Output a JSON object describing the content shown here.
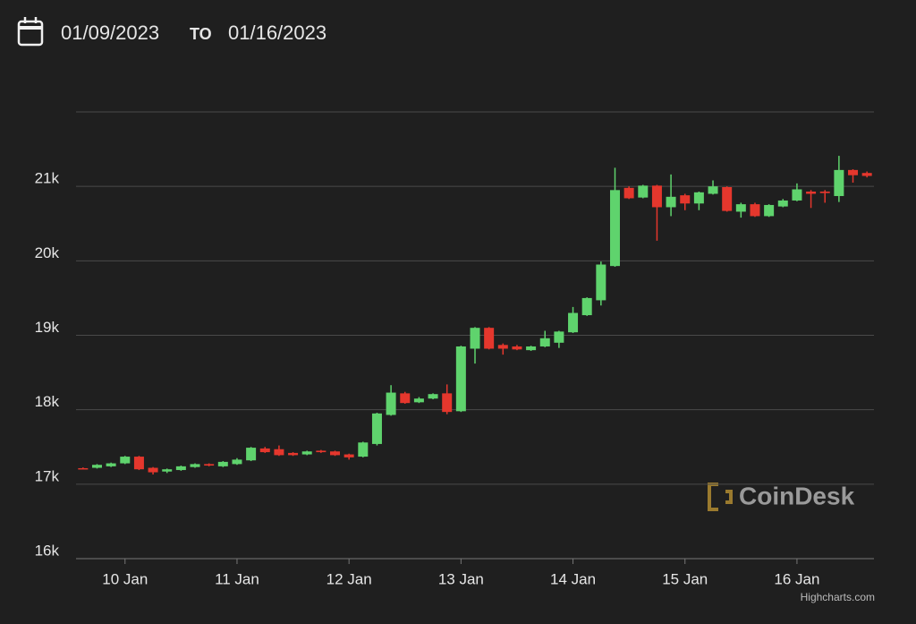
{
  "header": {
    "date_from": "01/09/2023",
    "separator": "TO",
    "date_to": "01/16/2023"
  },
  "chart_data": {
    "type": "candlestick",
    "watermark": "CoinDesk",
    "credits": "Highcharts.com",
    "x": [
      9.625,
      9.75,
      9.875,
      10.0,
      10.125,
      10.25,
      10.375,
      10.5,
      10.625,
      10.75,
      10.875,
      11.0,
      11.125,
      11.25,
      11.375,
      11.5,
      11.625,
      11.75,
      11.875,
      12.0,
      12.125,
      12.25,
      12.375,
      12.5,
      12.625,
      12.75,
      12.875,
      13.0,
      13.125,
      13.25,
      13.375,
      13.5,
      13.625,
      13.75,
      13.875,
      14.0,
      14.125,
      14.25,
      14.375,
      14.5,
      14.625,
      14.75,
      14.875,
      15.0,
      15.125,
      15.25,
      15.375,
      15.5,
      15.625,
      15.75,
      15.875,
      16.0,
      16.125,
      16.25,
      16.375,
      16.5,
      16.625
    ],
    "open": [
      17215,
      17220,
      17240,
      17280,
      17370,
      17220,
      17170,
      17190,
      17230,
      17270,
      17240,
      17270,
      17320,
      17480,
      17470,
      17420,
      17400,
      17450,
      17440,
      17400,
      17370,
      17540,
      17930,
      18220,
      18100,
      18150,
      18220,
      17980,
      18820,
      19100,
      18870,
      18850,
      18800,
      18850,
      18900,
      19040,
      19270,
      19470,
      19930,
      20980,
      20850,
      21010,
      20720,
      20880,
      20770,
      20900,
      20990,
      20660,
      20760,
      20600,
      20730,
      20810,
      20930,
      20930,
      20870,
      21220,
      21180
    ],
    "high": [
      17225,
      17270,
      17290,
      17380,
      17380,
      17230,
      17210,
      17250,
      17280,
      17280,
      17310,
      17350,
      17500,
      17500,
      17520,
      17430,
      17450,
      17460,
      17450,
      17410,
      17570,
      17960,
      18330,
      18240,
      18170,
      18220,
      18340,
      18860,
      19110,
      19110,
      18890,
      18870,
      18860,
      19060,
      19060,
      19380,
      19510,
      19990,
      21250,
      21000,
      21020,
      21020,
      21160,
      20900,
      20930,
      21080,
      21000,
      20780,
      20780,
      20760,
      20830,
      21040,
      20950,
      20950,
      21410,
      21230,
      21200
    ],
    "low": [
      17200,
      17210,
      17230,
      17270,
      17190,
      17130,
      17150,
      17180,
      17220,
      17240,
      17230,
      17260,
      17310,
      17420,
      17380,
      17380,
      17390,
      17420,
      17380,
      17330,
      17360,
      17520,
      17920,
      18080,
      18090,
      18140,
      17940,
      17970,
      18620,
      18810,
      18740,
      18800,
      18790,
      18840,
      18830,
      19030,
      19260,
      19400,
      19920,
      20830,
      20840,
      20270,
      20600,
      20680,
      20680,
      20890,
      20660,
      20580,
      20590,
      20590,
      20720,
      20800,
      20710,
      20780,
      20790,
      21050,
      21120
    ],
    "close": [
      17205,
      17260,
      17280,
      17370,
      17200,
      17160,
      17200,
      17240,
      17270,
      17250,
      17300,
      17330,
      17490,
      17430,
      17390,
      17390,
      17440,
      17430,
      17390,
      17360,
      17560,
      17950,
      18230,
      18090,
      18150,
      18210,
      17970,
      18850,
      19100,
      18820,
      18820,
      18810,
      18850,
      18960,
      19050,
      19300,
      19500,
      19950,
      20950,
      20840,
      21010,
      20720,
      20860,
      20770,
      20920,
      21000,
      20670,
      20760,
      20600,
      20750,
      20810,
      20960,
      20900,
      20910,
      21220,
      21150,
      21140
    ],
    "up_color": "#5fd36d",
    "down_color": "#e5372d",
    "xlim": [
      9.5625,
      16.6875
    ],
    "xticks": [
      {
        "value": 10,
        "label": "10 Jan"
      },
      {
        "value": 11,
        "label": "11 Jan"
      },
      {
        "value": 12,
        "label": "12 Jan"
      },
      {
        "value": 13,
        "label": "13 Jan"
      },
      {
        "value": 14,
        "label": "14 Jan"
      },
      {
        "value": 15,
        "label": "15 Jan"
      },
      {
        "value": 16,
        "label": "16 Jan"
      }
    ],
    "ylim": [
      16000,
      22000
    ],
    "yticks": [
      {
        "value": 16000,
        "label": "16k"
      },
      {
        "value": 17000,
        "label": "17k"
      },
      {
        "value": 18000,
        "label": "18k"
      },
      {
        "value": 19000,
        "label": "19k"
      },
      {
        "value": 20000,
        "label": "20k"
      },
      {
        "value": 21000,
        "label": "21k"
      }
    ],
    "grid": true
  }
}
